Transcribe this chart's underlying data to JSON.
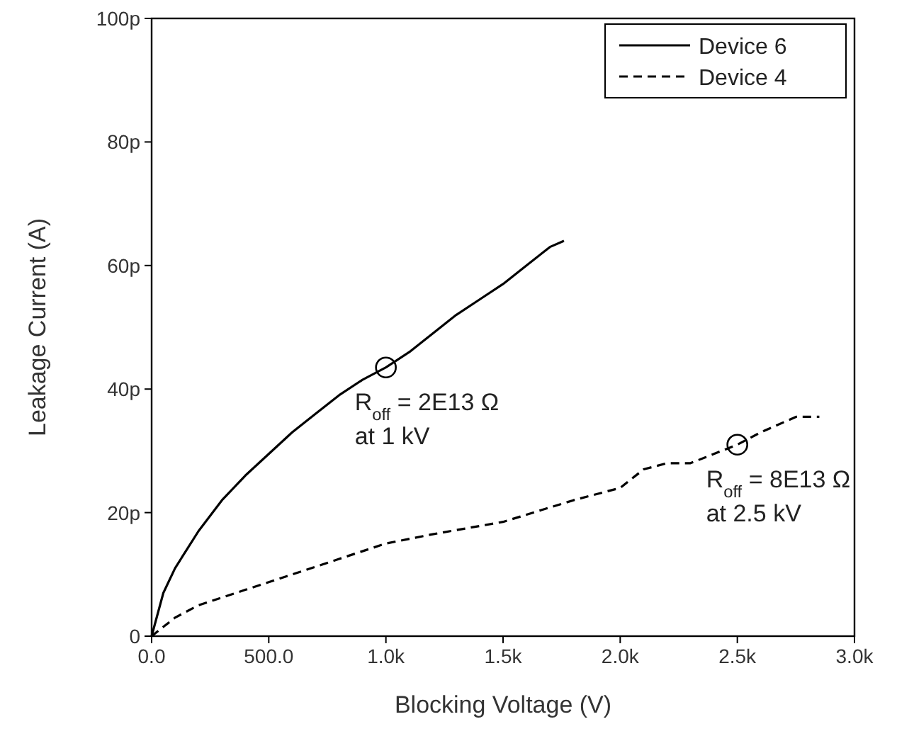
{
  "chart_data": {
    "type": "line",
    "xlabel": "Blocking Voltage (V)",
    "ylabel": "Leakage Current (A)",
    "xlim": [
      0,
      3000
    ],
    "ylim": [
      0,
      100
    ],
    "xticks": [
      {
        "value": 0,
        "label": "0.0"
      },
      {
        "value": 500,
        "label": "500.0"
      },
      {
        "value": 1000,
        "label": "1.0k"
      },
      {
        "value": 1500,
        "label": "1.5k"
      },
      {
        "value": 2000,
        "label": "2.0k"
      },
      {
        "value": 2500,
        "label": "2.5k"
      },
      {
        "value": 3000,
        "label": "3.0k"
      }
    ],
    "yticks": [
      {
        "value": 0,
        "label": "0"
      },
      {
        "value": 20,
        "label": "20p"
      },
      {
        "value": 40,
        "label": "40p"
      },
      {
        "value": 60,
        "label": "60p"
      },
      {
        "value": 80,
        "label": "80p"
      },
      {
        "value": 100,
        "label": "100p"
      }
    ],
    "grid": false,
    "legend": "top right",
    "marker": "none",
    "series": [
      {
        "name": "Device 6",
        "color": "#000000",
        "line_style": "solid",
        "x": [
          0,
          50,
          100,
          200,
          300,
          400,
          500,
          600,
          700,
          800,
          900,
          1000,
          1100,
          1200,
          1300,
          1400,
          1500,
          1600,
          1700,
          1760
        ],
        "values": [
          0,
          7,
          11,
          17,
          22,
          26,
          29.5,
          33,
          36,
          39,
          41.5,
          43.5,
          46,
          49,
          52,
          54.5,
          57,
          60,
          63,
          64
        ]
      },
      {
        "name": "Device 4",
        "color": "#000000",
        "line_style": "dashed",
        "x": [
          0,
          100,
          200,
          400,
          600,
          800,
          1000,
          1200,
          1500,
          1800,
          2000,
          2100,
          2200,
          2300,
          2500,
          2600,
          2750,
          2850
        ],
        "values": [
          0,
          3,
          5,
          7.5,
          10,
          12.5,
          15,
          16.5,
          18.5,
          22,
          24,
          27,
          28,
          28,
          31,
          33,
          35.5,
          35.5
        ]
      }
    ],
    "annotations": [
      {
        "text": "R$_{off}$ = 2E13 Ω\nat 1 kV",
        "x": 1000,
        "y": 43.5
      },
      {
        "text": "R$_{off}$ = 8E13 Ω\nat 2.5 kV",
        "x": 2500,
        "y": 31
      }
    ]
  }
}
